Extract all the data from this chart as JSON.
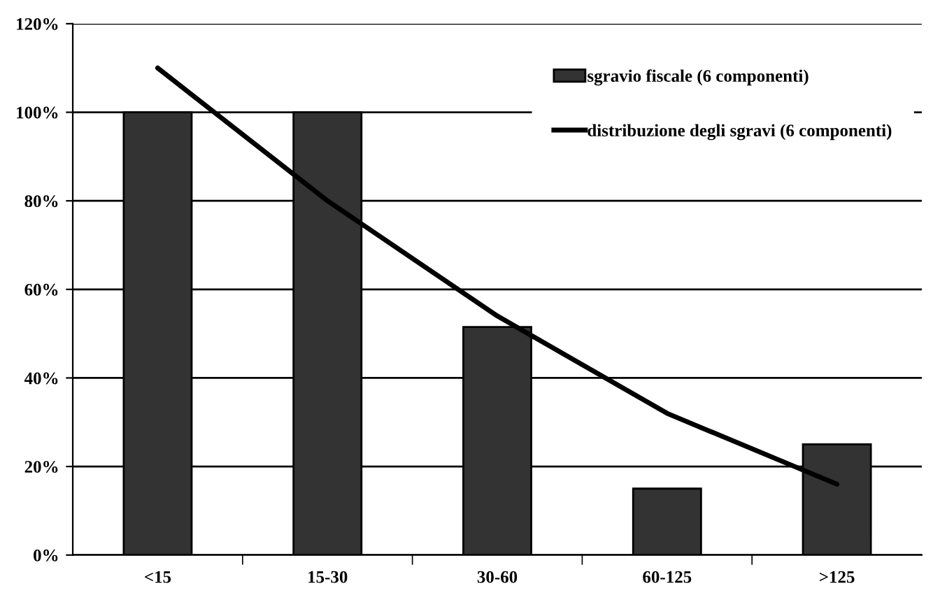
{
  "chart_data": {
    "type": "bar",
    "categories": [
      "<15",
      "15-30",
      "30-60",
      "60-125",
      ">125"
    ],
    "series": [
      {
        "name": "sgravio fiscale (6 componenti)",
        "color": "#333333",
        "values": [
          100,
          100,
          51.5,
          15,
          25
        ]
      },
      {
        "name": "distribuzione degli sgravi (6 componenti)",
        "type": "line",
        "color": "#000000",
        "values": [
          110,
          80,
          54,
          32,
          16
        ]
      }
    ],
    "ylim": [
      0,
      120
    ],
    "yticks": [
      {
        "value": 0,
        "label": "0%"
      },
      {
        "value": 20,
        "label": "20%"
      },
      {
        "value": 40,
        "label": "40%"
      },
      {
        "value": 60,
        "label": "60%"
      },
      {
        "value": 80,
        "label": "80%"
      },
      {
        "value": 100,
        "label": "100%"
      },
      {
        "value": 120,
        "label": "120%"
      }
    ],
    "grid": "y",
    "legend": "top right",
    "marker": "none",
    "line_style": "solid"
  }
}
